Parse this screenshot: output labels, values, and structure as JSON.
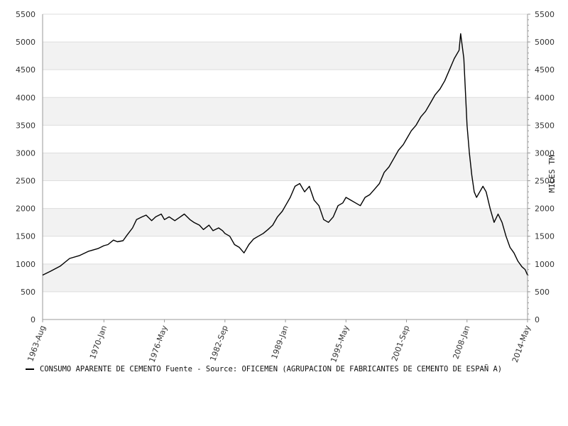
{
  "colors": {
    "line": "#000000",
    "band": "#f2f2f2",
    "grid": "#dddddd",
    "axis": "#999999",
    "text": "#333333"
  },
  "chart_data": {
    "type": "line",
    "title": "",
    "xlabel": "",
    "ylabel": "",
    "y2label": "MILES TM",
    "ylim": [
      0,
      5500
    ],
    "yticks": [
      0,
      500,
      1000,
      1500,
      2000,
      2500,
      3000,
      3500,
      4000,
      4500,
      5000,
      5500
    ],
    "xlim": [
      "1963-08",
      "2014-05"
    ],
    "xticks": [
      "1963-Aug",
      "1970-Jan",
      "1976-May",
      "1982-Sep",
      "1989-Jan",
      "1995-May",
      "2001-Sep",
      "2008-Jan",
      "2014-May"
    ],
    "grid": true,
    "legend_position": "bottom",
    "legend_text": "CONSUMO APARENTE DE CEMENTO  Fuente - Source: OFICEMEN (AGRUPACION DE FABRICANTES DE CEMENTO DE ESPAÑ A)",
    "series": [
      {
        "name": "CONSUMO APARENTE DE CEMENTO",
        "x": [
          "1963-08",
          "1964-06",
          "1965-06",
          "1966-06",
          "1967-06",
          "1968-06",
          "1969-06",
          "1970-01",
          "1970-06",
          "1971-01",
          "1971-06",
          "1972-01",
          "1972-06",
          "1973-01",
          "1973-06",
          "1974-01",
          "1974-06",
          "1975-01",
          "1975-06",
          "1976-01",
          "1976-05",
          "1976-11",
          "1977-06",
          "1978-01",
          "1978-06",
          "1979-01",
          "1979-06",
          "1980-01",
          "1980-06",
          "1981-01",
          "1981-06",
          "1982-01",
          "1982-06",
          "1982-09",
          "1983-03",
          "1983-09",
          "1984-03",
          "1984-09",
          "1985-03",
          "1985-09",
          "1986-03",
          "1986-09",
          "1987-03",
          "1987-09",
          "1988-03",
          "1988-09",
          "1989-01",
          "1989-07",
          "1990-01",
          "1990-07",
          "1991-01",
          "1991-07",
          "1992-01",
          "1992-07",
          "1993-01",
          "1993-07",
          "1994-01",
          "1994-07",
          "1995-01",
          "1995-05",
          "1995-11",
          "1996-05",
          "1996-11",
          "1997-05",
          "1997-11",
          "1998-05",
          "1998-11",
          "1999-05",
          "1999-11",
          "2000-05",
          "2000-11",
          "2001-05",
          "2001-09",
          "2002-03",
          "2002-09",
          "2003-03",
          "2003-09",
          "2004-03",
          "2004-09",
          "2005-03",
          "2005-09",
          "2006-03",
          "2006-09",
          "2007-03",
          "2007-05",
          "2007-09",
          "2008-01",
          "2008-04",
          "2008-07",
          "2008-10",
          "2009-01",
          "2009-05",
          "2009-09",
          "2010-01",
          "2010-06",
          "2010-11",
          "2011-04",
          "2011-09",
          "2012-02",
          "2012-07",
          "2012-12",
          "2013-05",
          "2013-10",
          "2014-02",
          "2014-05"
        ],
        "values": [
          800,
          870,
          960,
          1100,
          1150,
          1230,
          1280,
          1330,
          1350,
          1430,
          1400,
          1420,
          1520,
          1650,
          1800,
          1850,
          1880,
          1780,
          1850,
          1900,
          1800,
          1850,
          1780,
          1850,
          1900,
          1800,
          1750,
          1700,
          1620,
          1700,
          1600,
          1650,
          1600,
          1550,
          1500,
          1350,
          1300,
          1200,
          1350,
          1450,
          1500,
          1550,
          1620,
          1700,
          1850,
          1950,
          2050,
          2200,
          2400,
          2450,
          2300,
          2400,
          2150,
          2050,
          1800,
          1750,
          1850,
          2050,
          2100,
          2200,
          2150,
          2100,
          2050,
          2200,
          2250,
          2350,
          2450,
          2650,
          2750,
          2900,
          3050,
          3150,
          3250,
          3400,
          3500,
          3650,
          3750,
          3900,
          4050,
          4150,
          4300,
          4500,
          4700,
          4850,
          5150,
          4700,
          3500,
          3000,
          2600,
          2300,
          2200,
          2300,
          2400,
          2300,
          2000,
          1750,
          1900,
          1750,
          1500,
          1300,
          1200,
          1050,
          950,
          900,
          800
        ]
      }
    ]
  }
}
